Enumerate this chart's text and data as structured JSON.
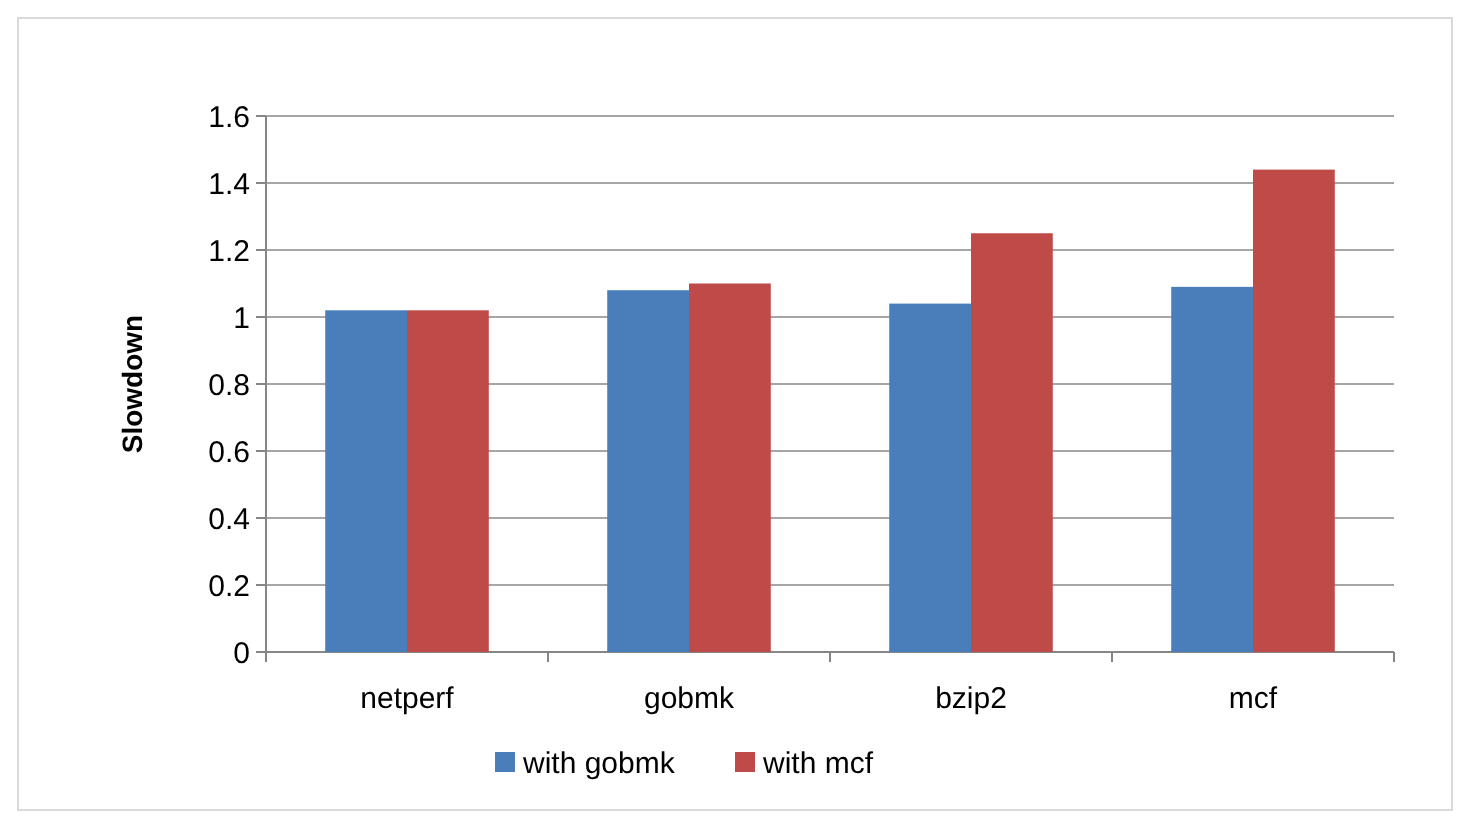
{
  "chart_data": {
    "type": "bar",
    "ylabel": "Slowdown",
    "categories": [
      "netperf",
      "gobmk",
      "bzip2",
      "mcf"
    ],
    "series": [
      {
        "name": "with gobmk",
        "color": "#4a7ebb",
        "values": [
          1.02,
          1.08,
          1.04,
          1.09
        ]
      },
      {
        "name": "with mcf",
        "color": "#be4b48",
        "values": [
          1.02,
          1.1,
          1.25,
          1.44
        ]
      }
    ],
    "ylim": [
      0,
      1.6
    ],
    "yticks": [
      0,
      0.2,
      0.4,
      0.6,
      0.8,
      1,
      1.2,
      1.4,
      1.6
    ],
    "grid": "y",
    "legend": "bottom"
  }
}
